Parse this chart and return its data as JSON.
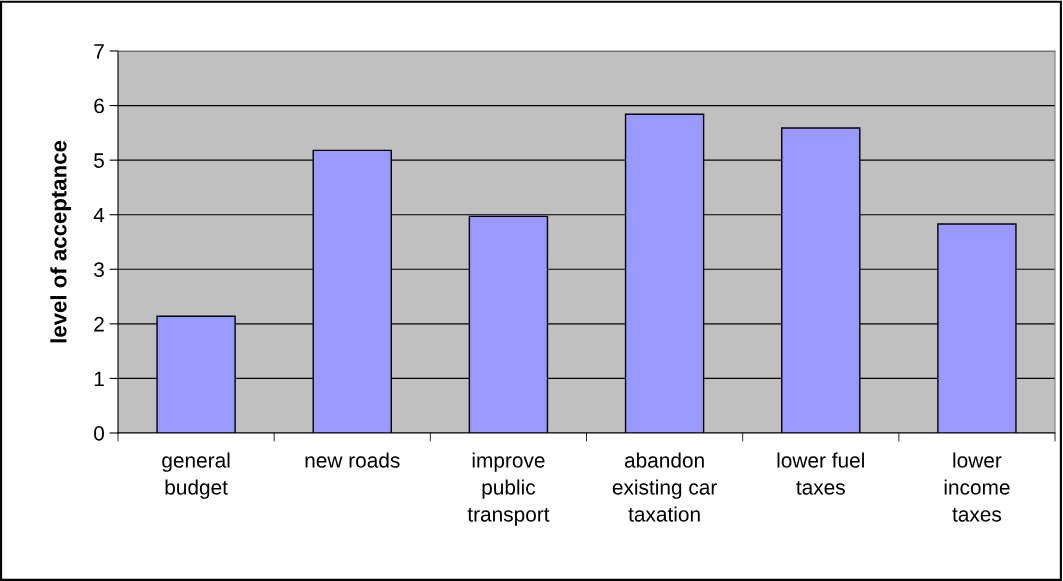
{
  "chart_data": {
    "type": "bar",
    "categories": [
      "general\nbudget",
      "new roads",
      "improve\npublic\ntransport",
      "abandon\nexisting car\ntaxation",
      "lower fuel\ntaxes",
      "lower\nincome\ntaxes"
    ],
    "values": [
      2.14,
      5.18,
      3.97,
      5.84,
      5.59,
      3.83
    ],
    "color": "#9999ff",
    "ylabel": "level of acceptance",
    "ylim": [
      0,
      7
    ],
    "yticks": [
      0,
      1,
      2,
      3,
      4,
      5,
      6,
      7
    ],
    "grid": "y",
    "legend": false
  }
}
